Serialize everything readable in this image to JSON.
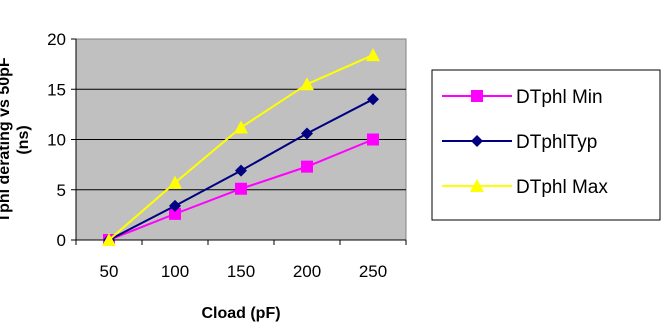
{
  "chart_data": {
    "type": "line",
    "x": [
      50,
      100,
      150,
      200,
      250
    ],
    "categories": [
      "50",
      "100",
      "150",
      "200",
      "250"
    ],
    "series": [
      {
        "name": "DTphl Min",
        "values": [
          0,
          2.6,
          5.1,
          7.3,
          10.0
        ],
        "color": "#ff00ff",
        "marker": "square"
      },
      {
        "name": "DTphlTyp",
        "values": [
          0,
          3.4,
          6.9,
          10.6,
          14.0
        ],
        "color": "#000080",
        "marker": "diamond"
      },
      {
        "name": "DTphl Max",
        "values": [
          0,
          5.7,
          11.2,
          15.5,
          18.4
        ],
        "color": "#ffff00",
        "marker": "triangle"
      }
    ],
    "y_ticks": [
      "0",
      "5",
      "10",
      "15",
      "20"
    ],
    "ylim": [
      0,
      20
    ],
    "xlabel": "Cload (pF)",
    "ylabel_line1": "Tphl derating vs 50pF",
    "ylabel_line2": "(ns)",
    "grid": true,
    "plot_background": "#c0c0c0",
    "legend_position": "right"
  }
}
